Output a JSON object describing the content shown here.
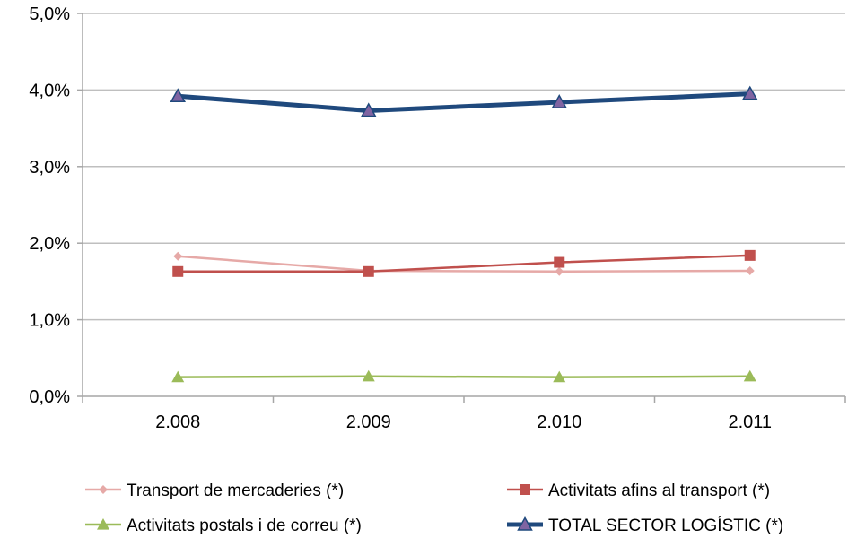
{
  "chart_data": {
    "type": "line",
    "title": "",
    "xlabel": "",
    "ylabel": "",
    "categories": [
      "2.008",
      "2.009",
      "2.010",
      "2.011"
    ],
    "ylim": [
      0,
      5
    ],
    "y_ticks": [
      0,
      1,
      2,
      3,
      4,
      5
    ],
    "y_tick_labels": [
      "0,0%",
      "1,0%",
      "2,0%",
      "3,0%",
      "4,0%",
      "5,0%"
    ],
    "grid": true,
    "legend_position": "bottom",
    "series": [
      {
        "name": "Transport de mercaderies (*)",
        "values": [
          1.83,
          1.64,
          1.63,
          1.64
        ],
        "color": "#E6A9A7",
        "marker": "diamond"
      },
      {
        "name": "Activitats afins al transport (*)",
        "values": [
          1.63,
          1.63,
          1.75,
          1.84
        ],
        "color": "#C0504D",
        "marker": "square"
      },
      {
        "name": "Activitats postals i de correu (*)",
        "values": [
          0.25,
          0.26,
          0.25,
          0.26
        ],
        "color": "#9BBB59",
        "marker": "triangle"
      },
      {
        "name": "TOTAL SECTOR LOGÍSTIC (*)",
        "values": [
          3.92,
          3.73,
          3.84,
          3.95
        ],
        "color": "#1F497D",
        "marker": "triangle"
      }
    ]
  }
}
